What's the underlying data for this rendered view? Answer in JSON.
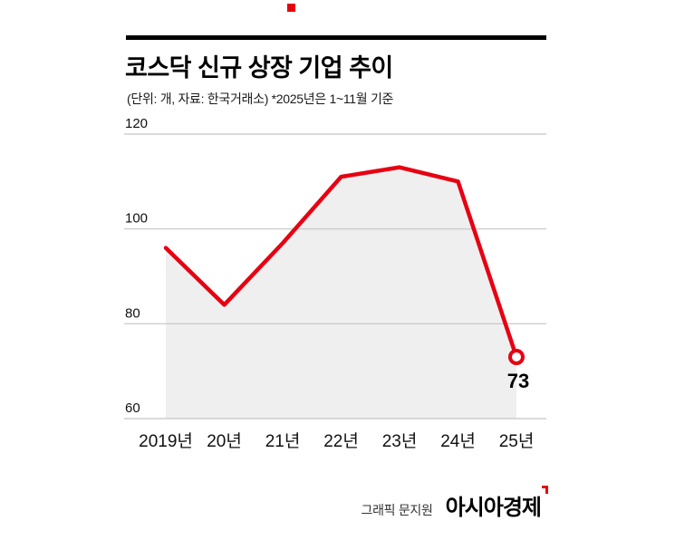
{
  "page": {
    "title": "코스닥 신규 상장 기업 추이",
    "subtitle": "(단위: 개, 자료: 한국거래소)  *2025년은 1~11월 기준"
  },
  "footer": {
    "credit": "그래픽 문지원",
    "logo": "아시아경제"
  },
  "colors": {
    "line": "#e60012",
    "area": "#efefef",
    "grid": "#c4c4c4",
    "text": "#111111"
  },
  "chart_data": {
    "type": "line",
    "title": "코스닥 신규 상장 기업 추이",
    "unit_note": "(단위: 개, 자료: 한국거래소)",
    "footnote": "*2025년은 1~11월 기준",
    "categories": [
      "2019년",
      "20년",
      "21년",
      "22년",
      "23년",
      "24년",
      "25년"
    ],
    "values": [
      96,
      84,
      97,
      111,
      113,
      110,
      73
    ],
    "yticks": [
      120,
      100,
      80,
      60
    ],
    "ylim": [
      60,
      120
    ],
    "grid": true,
    "area_fill": true,
    "legend": "none",
    "annotated_point": {
      "category": "25년",
      "value": 73,
      "label": "73"
    }
  }
}
